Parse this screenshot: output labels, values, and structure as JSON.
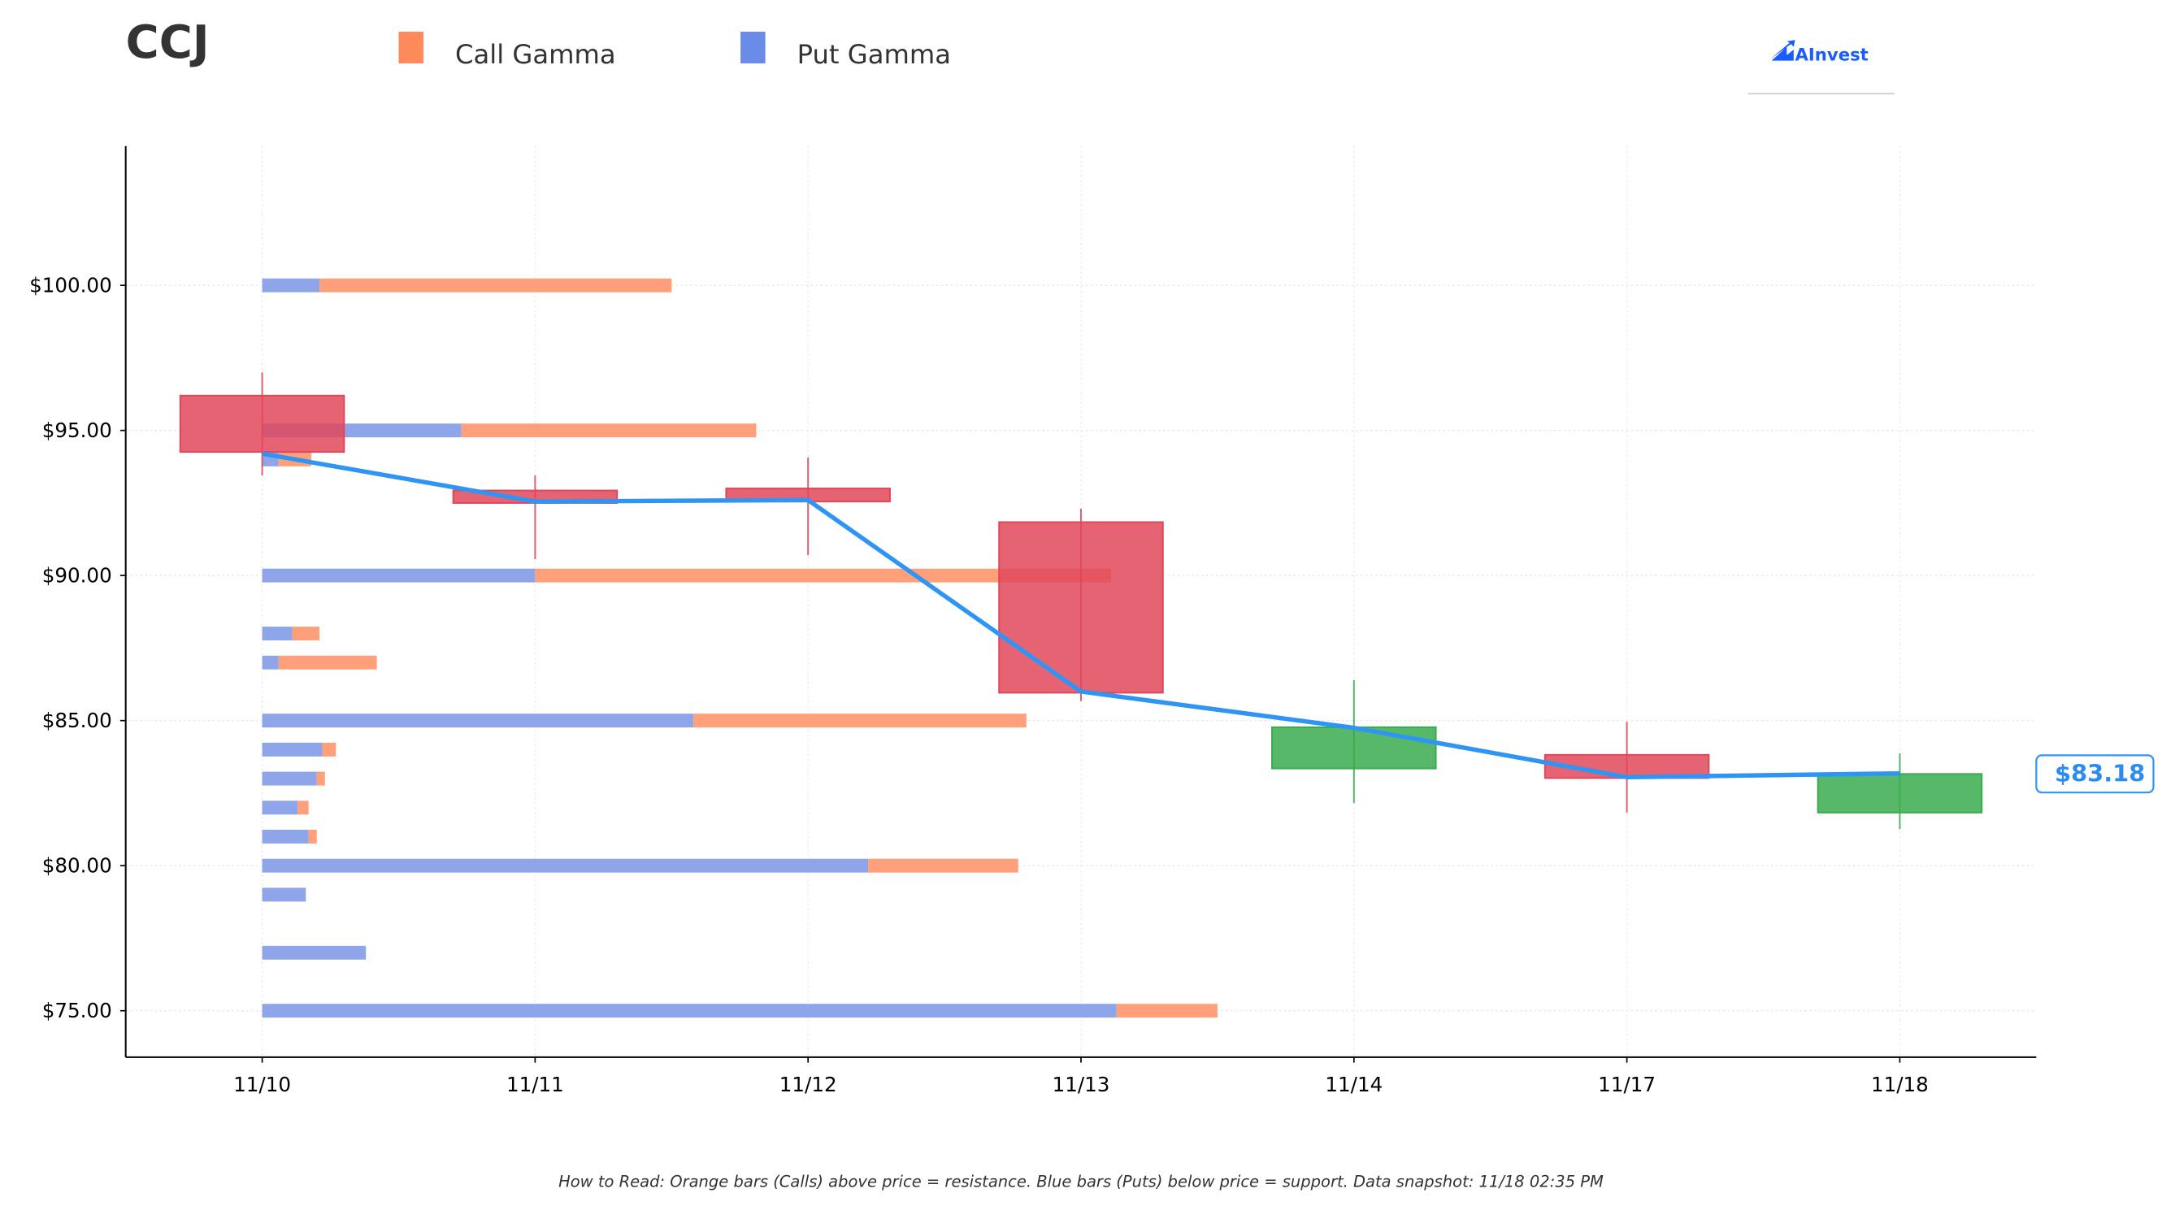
{
  "header": {
    "ticker": "CCJ",
    "logo_text": "AInvest"
  },
  "legend": [
    {
      "label": "Call Gamma",
      "color": "#ff8a5c"
    },
    {
      "label": "Put Gamma",
      "color": "#6a8be8"
    }
  ],
  "footer": {
    "note": "How to Read: Orange bars (Calls) above price = resistance. Blue bars (Puts) below price = support. Data snapshot: 11/18 02:35 PM"
  },
  "chart_data": {
    "type": "candlestick with horizontal gamma bars",
    "categories": [
      "11/10",
      "11/11",
      "11/12",
      "11/13",
      "11/14",
      "11/17",
      "11/18"
    ],
    "ylim": [
      73.4,
      104.8
    ],
    "yticks": [
      75,
      80,
      85,
      90,
      95,
      100
    ],
    "ytick_labels": [
      "$75.00",
      "$80.00",
      "$85.00",
      "$90.00",
      "$95.00",
      "$100.00"
    ],
    "grid": true,
    "colors": {
      "up": "#3aab4f",
      "down": "#e0485a",
      "line": "#2f95f5",
      "call": "#ffa07a",
      "put": "#8ea5ea"
    },
    "candles": [
      {
        "date": "11/10",
        "open": 96.2,
        "high": 97.0,
        "low": 93.45,
        "close": 94.26
      },
      {
        "date": "11/11",
        "open": 92.93,
        "high": 93.45,
        "low": 90.56,
        "close": 92.5
      },
      {
        "date": "11/12",
        "open": 93.0,
        "high": 94.07,
        "low": 90.7,
        "close": 92.55
      },
      {
        "date": "11/13",
        "open": 91.84,
        "high": 92.3,
        "low": 85.67,
        "close": 85.96
      },
      {
        "date": "11/14",
        "open": 83.35,
        "high": 86.39,
        "low": 82.16,
        "close": 84.77
      },
      {
        "date": "11/17",
        "open": 83.82,
        "high": 84.96,
        "low": 81.83,
        "close": 83.02
      },
      {
        "date": "11/18",
        "open": 81.83,
        "high": 83.87,
        "low": 81.26,
        "close": 83.16
      }
    ],
    "price_line": {
      "values": [
        94.2,
        92.55,
        92.6,
        86.0,
        84.75,
        83.05,
        83.18
      ],
      "last_label": "$83.18"
    },
    "gamma_bars": [
      {
        "strike": 100,
        "put": 0.21,
        "call": 1.29
      },
      {
        "strike": 95,
        "put": 0.73,
        "call": 1.08
      },
      {
        "strike": 94,
        "put": 0.06,
        "call": 0.12
      },
      {
        "strike": 90,
        "put": 1.0,
        "call": 2.11
      },
      {
        "strike": 88,
        "put": 0.11,
        "call": 0.1
      },
      {
        "strike": 87,
        "put": 0.06,
        "call": 0.36
      },
      {
        "strike": 85,
        "put": 1.58,
        "call": 1.22
      },
      {
        "strike": 84,
        "put": 0.22,
        "call": 0.05
      },
      {
        "strike": 83,
        "put": 0.2,
        "call": 0.03
      },
      {
        "strike": 82,
        "put": 0.13,
        "call": 0.04
      },
      {
        "strike": 81,
        "put": 0.17,
        "call": 0.03
      },
      {
        "strike": 80,
        "put": 2.22,
        "call": 0.55
      },
      {
        "strike": 79,
        "put": 0.16,
        "call": 0
      },
      {
        "strike": 77,
        "put": 0.38,
        "call": 0
      },
      {
        "strike": 75,
        "put": 3.13,
        "call": 0.37
      }
    ]
  }
}
